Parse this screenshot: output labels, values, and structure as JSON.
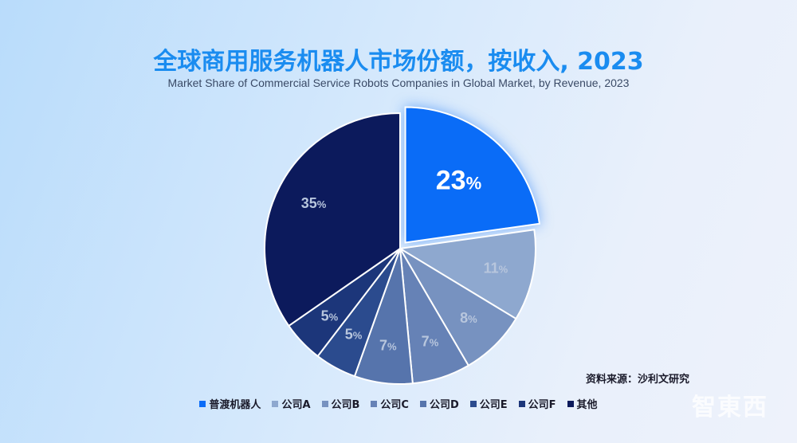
{
  "chart_data": {
    "type": "pie",
    "title": "全球商用服务机器人市场份额，按收入, 2023",
    "subtitle": "Market Share of Commercial Service Robots Companies in Global Market, by Revenue, 2023",
    "slices": [
      {
        "label": "普渡机器人",
        "value": 23,
        "display": "23",
        "color": "#0a6cf7",
        "exploded": true
      },
      {
        "label": "公司A",
        "value": 11,
        "display": "11",
        "color": "#8ea8cf"
      },
      {
        "label": "公司B",
        "value": 8,
        "display": "8",
        "color": "#7792c0"
      },
      {
        "label": "公司C",
        "value": 7,
        "display": "7",
        "color": "#6682b6"
      },
      {
        "label": "公司D",
        "value": 7,
        "display": "7",
        "color": "#5674ac"
      },
      {
        "label": "公司E",
        "value": 5,
        "display": "5",
        "color": "#2b4b8e"
      },
      {
        "label": "公司F",
        "value": 5,
        "display": "5",
        "color": "#1c367a"
      },
      {
        "label": "其他",
        "value": 35,
        "display": "35",
        "color": "#0c1a5c"
      }
    ],
    "percent_sign": "%",
    "legend_position": "bottom"
  },
  "source": "资料来源：沙利文研究",
  "watermark": "智東西"
}
